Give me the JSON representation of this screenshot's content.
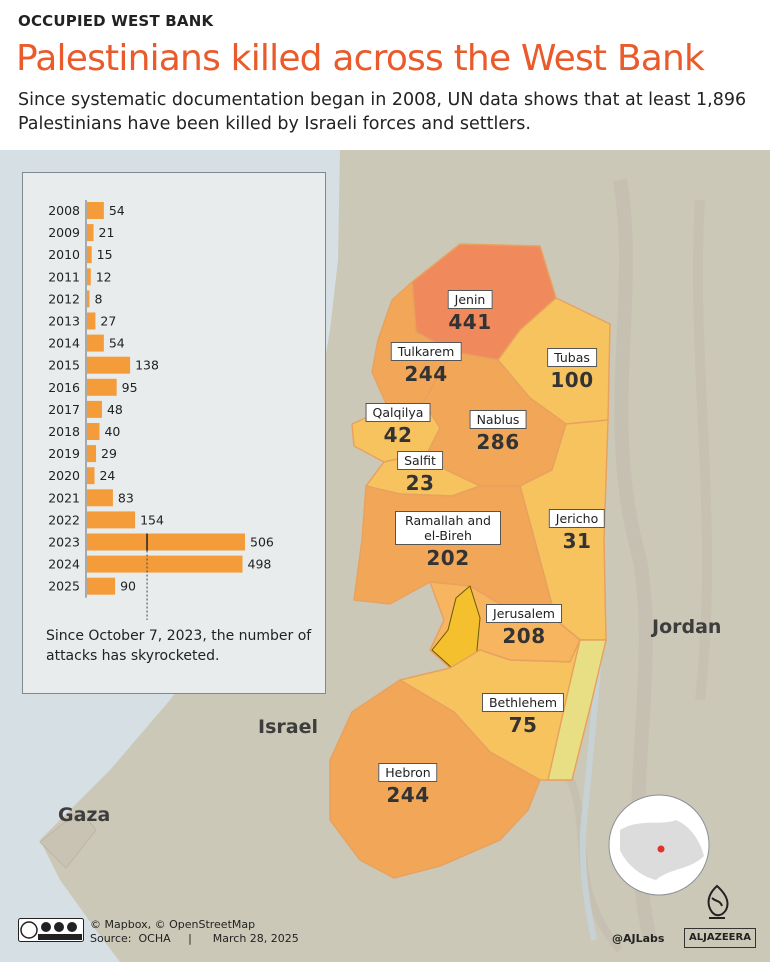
{
  "kicker": "OCCUPIED WEST BANK",
  "title": "Palestinians killed across the West Bank",
  "subtitle": "Since systematic documentation began in 2008, UN data shows that at least 1,896 Palestinians have been killed by Israeli forces and settlers.",
  "colors": {
    "title": "#ea5a2b",
    "bar": "#f59c3a",
    "sea": "#d6dfe3",
    "land": "#c9c6b7",
    "high": "#f08a5d",
    "mid": "#f2a657",
    "low": "#f7c35f",
    "lowest": "#eedf79"
  },
  "chart_data": {
    "type": "bar",
    "orientation": "horizontal",
    "categories": [
      "2008",
      "2009",
      "2010",
      "2011",
      "2012",
      "2013",
      "2014",
      "2015",
      "2016",
      "2017",
      "2018",
      "2019",
      "2020",
      "2021",
      "2022",
      "2023",
      "2024",
      "2025"
    ],
    "values": [
      54,
      21,
      15,
      12,
      8,
      27,
      54,
      138,
      95,
      48,
      40,
      29,
      24,
      83,
      154,
      506,
      498,
      90
    ],
    "annotation": "Since October 7, 2023, the number of attacks has skyrocketed."
  },
  "map": {
    "countries": {
      "jordan": "Jordan",
      "israel": "Israel",
      "gaza": "Gaza"
    },
    "governorates": [
      {
        "key": "jenin",
        "name": "Jenin",
        "value": "441"
      },
      {
        "key": "tulkarem",
        "name": "Tulkarem",
        "value": "244"
      },
      {
        "key": "tubas",
        "name": "Tubas",
        "value": "100"
      },
      {
        "key": "qalqilya",
        "name": "Qalqilya",
        "value": "42"
      },
      {
        "key": "nablus",
        "name": "Nablus",
        "value": "286"
      },
      {
        "key": "salfit",
        "name": "Salfit",
        "value": "23"
      },
      {
        "key": "ramallah",
        "name": "Ramallah and el-Bireh",
        "value": "202"
      },
      {
        "key": "jericho",
        "name": "Jericho",
        "value": "31"
      },
      {
        "key": "jerusalem",
        "name": "Jerusalem",
        "value": "208"
      },
      {
        "key": "bethlehem",
        "name": "Bethlehem",
        "value": "75"
      },
      {
        "key": "hebron",
        "name": "Hebron",
        "value": "244"
      }
    ]
  },
  "footer": {
    "credit": "© Mapbox, © OpenStreetMap",
    "source": "Source:  OCHA     |      March 28, 2025",
    "handle": "@AJLabs",
    "brand": "ALJAZEERA"
  }
}
